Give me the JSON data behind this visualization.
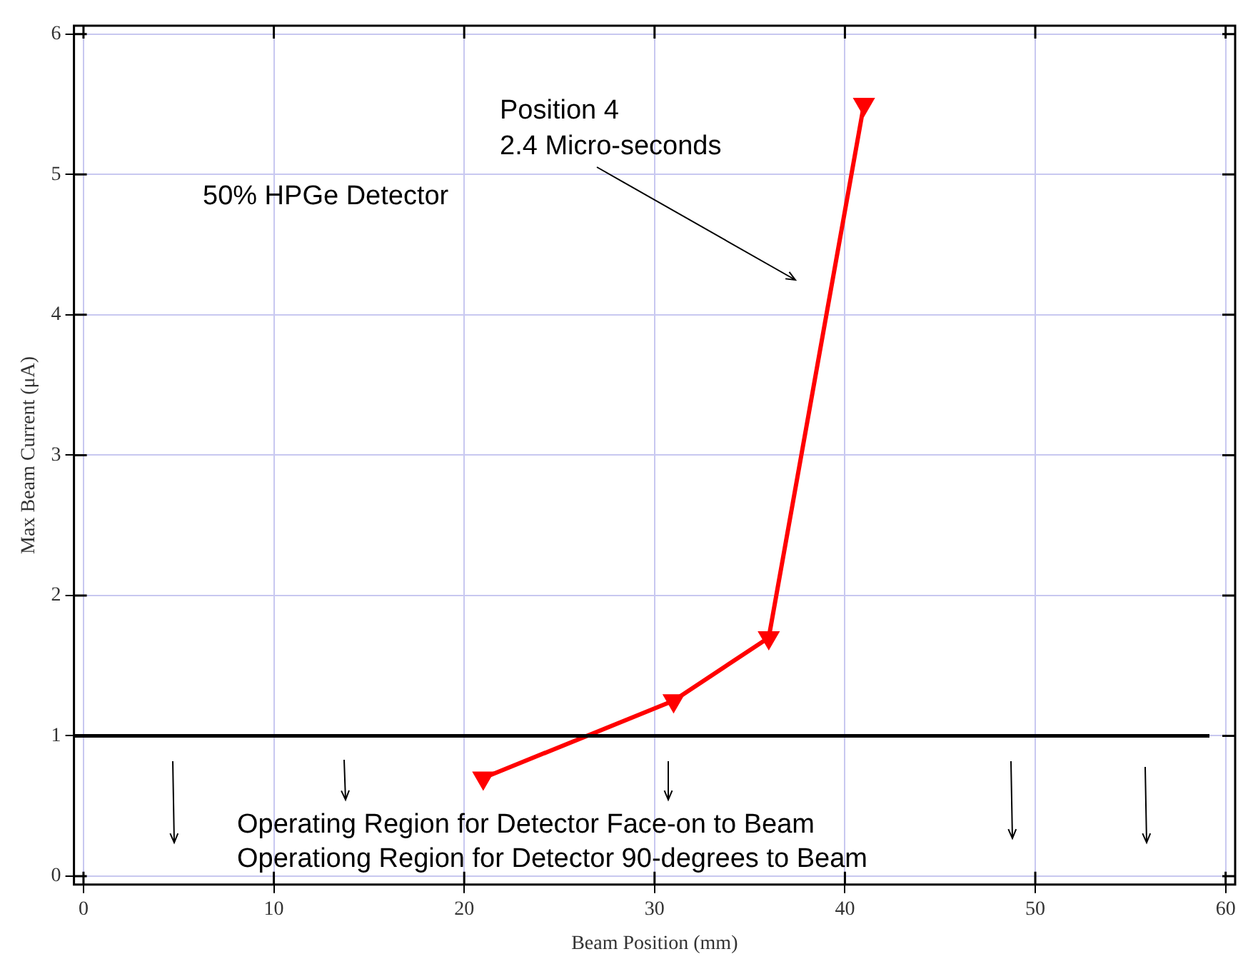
{
  "chart_data": {
    "type": "line",
    "xlabel": "Beam Position (mm)",
    "ylabel": "Max Beam Current (μA)",
    "x": [
      21,
      31,
      36,
      41
    ],
    "series": [
      {
        "color": "#ff0000",
        "values": [
          0.7,
          1.25,
          1.7,
          5.5
        ]
      }
    ],
    "xlim": [
      -0.5,
      60.5
    ],
    "xticks": [
      0,
      10,
      20,
      30,
      40,
      50,
      60
    ],
    "ylim": [
      -0.06,
      6.06
    ],
    "yticks": [
      0,
      1,
      2,
      3,
      4,
      5,
      6
    ],
    "grid": true,
    "legend": false,
    "marker": "triangle",
    "line_style": "solid",
    "ref_lines": [
      {
        "axis": "y",
        "value": 1,
        "color": "#000000"
      }
    ],
    "annotations": [
      "Position 4\n2.4 Micro-seconds",
      "50% HPGe Detector",
      "Operating Region for Detector Face-on to Beam",
      "Operationg Region for Detector 90-degrees to Beam"
    ]
  }
}
